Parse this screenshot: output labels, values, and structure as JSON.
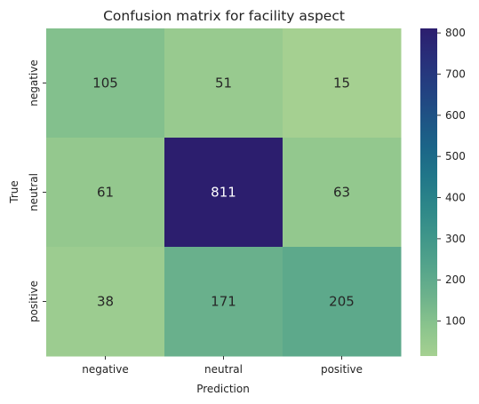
{
  "chart_data": {
    "type": "heatmap",
    "title": "Confusion matrix for facility aspect",
    "xlabel": "Prediction",
    "ylabel": "True",
    "x_categories": [
      "negative",
      "neutral",
      "positive"
    ],
    "y_categories": [
      "negative",
      "neutral",
      "positive"
    ],
    "values": [
      [
        105,
        51,
        15
      ],
      [
        61,
        811,
        63
      ],
      [
        38,
        171,
        205
      ]
    ],
    "colormap": "crest",
    "vmin": 15,
    "vmax": 811,
    "colorbar_ticks": [
      100,
      200,
      300,
      400,
      500,
      600,
      700,
      800
    ],
    "colorbar_colors": [
      "#a5d091",
      "#8ac48d",
      "#6db28c",
      "#54a48b",
      "#3f968a",
      "#2d8789",
      "#217789",
      "#1b6588",
      "#1e5385",
      "#234081",
      "#282f7a",
      "#2c1e6e"
    ]
  }
}
